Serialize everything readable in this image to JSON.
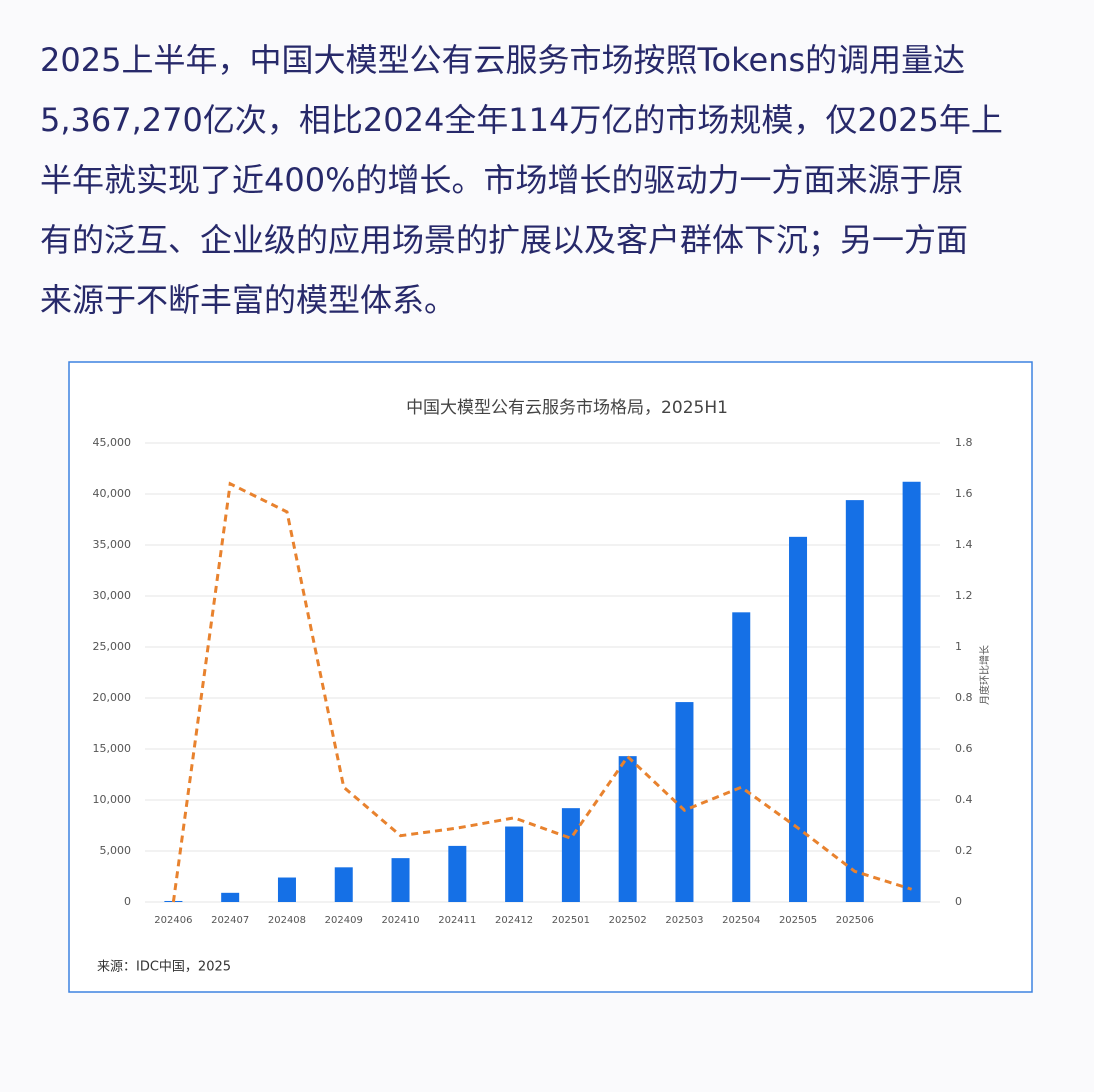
{
  "text_lines": [
    "2025上半年，中国大模型公有云服务市场按照Tokens的调用量达",
    "5,367,270亿次，相比2024全年114万亿的市场规模，仅2025年上",
    "半年就实现了近400%的增长。市场增长的驱动力一方面来源于原",
    "有的泛互、企业级的应用场景的扩展以及客户群体下沉；另一方面",
    "来源于不断丰富的模型体系。"
  ],
  "chart_data": {
    "type": "bar_line",
    "title": "中国大模型公有云服务市场格局，2025H1",
    "categories": [
      "202406",
      "202407",
      "202408",
      "202409",
      "202410",
      "202411",
      "202412",
      "202501",
      "202502",
      "202503",
      "202504",
      "202505",
      "202506",
      null
    ],
    "series": [
      {
        "name": null,
        "type": "bar",
        "color": "#1570e6",
        "values": [
          100,
          900,
          2400,
          3400,
          4300,
          5500,
          7400,
          9200,
          14300,
          19600,
          28400,
          35800,
          39400,
          41200
        ]
      },
      {
        "name": null,
        "type": "line",
        "axis": "y2",
        "color": "#e8822e",
        "dashed": true,
        "values": [
          0,
          1.64,
          1.53,
          0.45,
          0.26,
          0.29,
          0.33,
          0.25,
          0.57,
          0.36,
          0.45,
          0.29,
          0.12,
          0.05
        ]
      }
    ],
    "ylim": [
      0,
      45000
    ],
    "yticks": [
      0,
      {
        "value": 5000,
        "label": "5,000"
      },
      {
        "value": 10000,
        "label": "10,000"
      },
      {
        "value": 15000,
        "label": "15,000"
      },
      {
        "value": 20000,
        "label": "20,000"
      },
      {
        "value": 25000,
        "label": "25,000"
      },
      {
        "value": 30000,
        "label": "30,000"
      },
      {
        "value": 35000,
        "label": "35,000"
      },
      {
        "value": 40000,
        "label": "40,000"
      },
      {
        "value": 45000,
        "label": "45,000"
      }
    ],
    "y2lim": [
      0,
      1.8
    ],
    "y2ticks": [
      0,
      0.2,
      0.4,
      0.6,
      0.8,
      1,
      1.2,
      1.4,
      1.6,
      1.8
    ],
    "y2label": "月度环比增长",
    "grid": true,
    "source": "来源：IDC中国，2025"
  }
}
